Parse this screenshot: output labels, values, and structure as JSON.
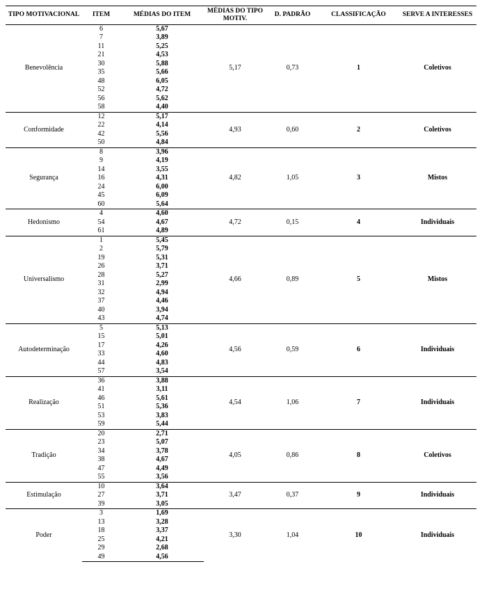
{
  "headers": {
    "tipo": "TIPO MOTIVACIONAL",
    "item": "ITEM",
    "medias_item": "MÉDIAS DO  ITEM",
    "medias_motiv": "MÉDIAS DO TIPO MOTIV.",
    "dpadrao": "D. PADRÃO",
    "classificacao": "CLASSIFICAÇÃO",
    "serve": "SERVE A INTERESSES"
  },
  "groups": [
    {
      "tipo": "Benevolência",
      "media_motiv": "5,17",
      "dpadrao": "0,73",
      "classificacao": "1",
      "serve": "Coletivos",
      "rows": [
        {
          "item": "6",
          "m": "5,67"
        },
        {
          "item": "7",
          "m": "3,89"
        },
        {
          "item": "11",
          "m": "5,25"
        },
        {
          "item": "21",
          "m": "4,53"
        },
        {
          "item": "30",
          "m": "5,88"
        },
        {
          "item": "35",
          "m": "5,66"
        },
        {
          "item": "48",
          "m": "6,05"
        },
        {
          "item": "52",
          "m": "4,72"
        },
        {
          "item": "56",
          "m": "5,62"
        },
        {
          "item": "58",
          "m": "4,40"
        }
      ]
    },
    {
      "tipo": "Conformidade",
      "media_motiv": "4,93",
      "dpadrao": "0,60",
      "classificacao": "2",
      "serve": "Coletivos",
      "rows": [
        {
          "item": "12",
          "m": "5,17"
        },
        {
          "item": "22",
          "m": "4,14"
        },
        {
          "item": "42",
          "m": "5,56"
        },
        {
          "item": "50",
          "m": "4,84"
        }
      ]
    },
    {
      "tipo": "Segurança",
      "media_motiv": "4,82",
      "dpadrao": "1,05",
      "classificacao": "3",
      "serve": "Mistos",
      "rows": [
        {
          "item": "8",
          "m": "3,96"
        },
        {
          "item": "9",
          "m": "4,19"
        },
        {
          "item": "14",
          "m": "3,55"
        },
        {
          "item": "16",
          "m": "4,31"
        },
        {
          "item": "24",
          "m": "6,00"
        },
        {
          "item": "45",
          "m": "6,09"
        },
        {
          "item": "60",
          "m": "5,64"
        }
      ]
    },
    {
      "tipo": "Hedonismo",
      "media_motiv": "4,72",
      "dpadrao": "0,15",
      "classificacao": "4",
      "serve": "Individuais",
      "rows": [
        {
          "item": "4",
          "m": "4,60"
        },
        {
          "item": "54",
          "m": "4,67"
        },
        {
          "item": "61",
          "m": "4,89"
        }
      ]
    },
    {
      "tipo": "Universalismo",
      "media_motiv": "4,66",
      "dpadrao": "0,89",
      "classificacao": "5",
      "serve": "Mistos",
      "rows": [
        {
          "item": "1",
          "m": "5,45"
        },
        {
          "item": "2",
          "m": "5,79"
        },
        {
          "item": "19",
          "m": "5,31"
        },
        {
          "item": "26",
          "m": "3,71"
        },
        {
          "item": "28",
          "m": "5,27"
        },
        {
          "item": "31",
          "m": "2,99"
        },
        {
          "item": "32",
          "m": "4,94"
        },
        {
          "item": "37",
          "m": "4,46"
        },
        {
          "item": "40",
          "m": "3,94"
        },
        {
          "item": "43",
          "m": "4,74"
        }
      ]
    },
    {
      "tipo": "Autodeterminação",
      "media_motiv": "4,56",
      "dpadrao": "0,59",
      "classificacao": "6",
      "serve": "Individuais",
      "rows": [
        {
          "item": "5",
          "m": "5,13"
        },
        {
          "item": "15",
          "m": "5,01"
        },
        {
          "item": "17",
          "m": "4,26"
        },
        {
          "item": "33",
          "m": "4,60"
        },
        {
          "item": "44",
          "m": "4,83"
        },
        {
          "item": "57",
          "m": "3,54"
        }
      ]
    },
    {
      "tipo": "Realização",
      "media_motiv": "4,54",
      "dpadrao": "1,06",
      "classificacao": "7",
      "serve": "Individuais",
      "rows": [
        {
          "item": "36",
          "m": "3,88"
        },
        {
          "item": "41",
          "m": "3,11"
        },
        {
          "item": "46",
          "m": "5,61"
        },
        {
          "item": "51",
          "m": "5,36"
        },
        {
          "item": "53",
          "m": "3,83"
        },
        {
          "item": "59",
          "m": "5,44"
        }
      ]
    },
    {
      "tipo": "Tradição",
      "media_motiv": "4,05",
      "dpadrao": "0,86",
      "classificacao": "8",
      "serve": "Coletivos",
      "rows": [
        {
          "item": "20",
          "m": "2,71"
        },
        {
          "item": "23",
          "m": "5,07"
        },
        {
          "item": "34",
          "m": "3,78"
        },
        {
          "item": "38",
          "m": "4,67"
        },
        {
          "item": "47",
          "m": "4,49"
        },
        {
          "item": "55",
          "m": "3,56"
        }
      ]
    },
    {
      "tipo": "Estimulação",
      "media_motiv": "3,47",
      "dpadrao": "0,37",
      "classificacao": "9",
      "serve": "Individuais",
      "rows": [
        {
          "item": "10",
          "m": "3,64"
        },
        {
          "item": "27",
          "m": "3,71"
        },
        {
          "item": "39",
          "m": "3,05"
        }
      ]
    },
    {
      "tipo": "Poder",
      "media_motiv": "3,30",
      "dpadrao": "1,04",
      "classificacao": "10",
      "serve": "Individuais",
      "rows": [
        {
          "item": "3",
          "m": "1,69"
        },
        {
          "item": "13",
          "m": "3,28"
        },
        {
          "item": "18",
          "m": "3,37"
        },
        {
          "item": "25",
          "m": "4,21"
        },
        {
          "item": "29",
          "m": "2,68"
        },
        {
          "item": "49",
          "m": "4,56"
        }
      ]
    }
  ]
}
